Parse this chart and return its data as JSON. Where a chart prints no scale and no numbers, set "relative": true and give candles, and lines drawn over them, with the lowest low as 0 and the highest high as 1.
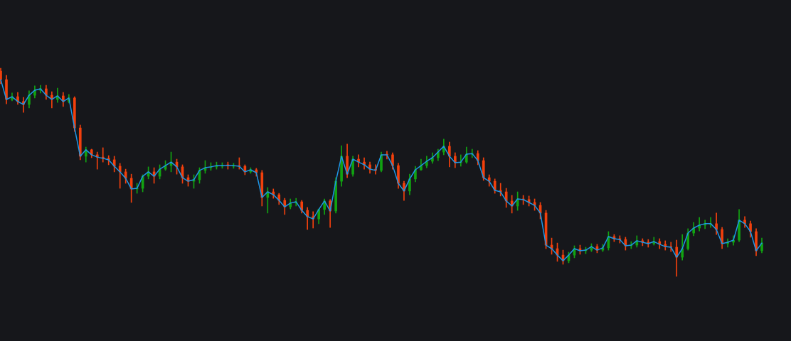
{
  "chart_data": {
    "type": "candlestick",
    "relative": true,
    "categories": [
      null,
      null,
      null,
      null,
      null,
      null,
      null,
      null,
      null,
      null,
      null,
      null,
      null,
      null,
      null,
      null,
      null,
      null,
      null,
      null,
      null,
      null,
      null,
      null,
      null,
      null,
      null,
      null,
      null,
      null,
      null,
      null,
      null,
      null,
      null,
      null,
      null,
      null,
      null,
      null,
      null,
      null,
      null,
      null,
      null,
      null,
      null,
      null,
      null,
      null,
      null,
      null,
      null,
      null,
      null,
      null,
      null,
      null,
      null,
      null,
      null,
      null,
      null,
      null,
      null,
      null,
      null,
      null,
      null,
      null,
      null,
      null,
      null,
      null,
      null,
      null,
      null,
      null,
      null,
      null,
      null,
      null,
      null,
      null,
      null,
      null,
      null,
      null,
      null,
      null,
      null,
      null,
      null,
      null,
      null,
      null,
      null,
      null,
      null,
      null,
      null,
      null,
      null,
      null,
      null,
      null,
      null,
      null,
      null,
      null,
      null,
      null,
      null,
      null,
      null,
      null,
      null,
      null,
      null,
      null,
      null,
      null,
      null,
      null,
      null,
      null,
      null,
      null,
      null,
      null,
      null,
      null,
      null,
      null,
      null
    ],
    "series": [
      {
        "type": "line",
        "color": "#1e96e6",
        "values": [
          0.945,
          0.85,
          0.863,
          0.84,
          0.826,
          0.87,
          0.894,
          0.901,
          0.87,
          0.85,
          0.867,
          0.84,
          0.857,
          0.713,
          0.577,
          0.608,
          0.584,
          0.573,
          0.567,
          0.56,
          0.529,
          0.502,
          0.471,
          0.42,
          0.423,
          0.481,
          0.502,
          0.481,
          0.515,
          0.532,
          0.549,
          0.526,
          0.474,
          0.457,
          0.464,
          0.509,
          0.522,
          0.526,
          0.532,
          0.532,
          0.532,
          0.532,
          0.529,
          0.502,
          0.512,
          0.498,
          0.379,
          0.406,
          0.392,
          0.365,
          0.334,
          0.352,
          0.358,
          0.317,
          0.287,
          0.276,
          0.321,
          0.362,
          0.314,
          0.457,
          0.577,
          0.491,
          0.563,
          0.549,
          0.536,
          0.515,
          0.509,
          0.584,
          0.584,
          0.532,
          0.447,
          0.41,
          0.468,
          0.512,
          0.532,
          0.553,
          0.57,
          0.597,
          0.625,
          0.577,
          0.546,
          0.549,
          0.587,
          0.59,
          0.556,
          0.474,
          0.457,
          0.413,
          0.406,
          0.362,
          0.338,
          0.372,
          0.369,
          0.355,
          0.341,
          0.304,
          0.15,
          0.133,
          0.102,
          0.075,
          0.102,
          0.133,
          0.123,
          0.126,
          0.143,
          0.126,
          0.137,
          0.191,
          0.181,
          0.177,
          0.147,
          0.15,
          0.171,
          0.164,
          0.157,
          0.167,
          0.154,
          0.143,
          0.14,
          0.092,
          0.133,
          0.208,
          0.232,
          0.246,
          0.253,
          0.253,
          0.225,
          0.157,
          0.164,
          0.174,
          0.27,
          0.253,
          0.215,
          0.123,
          0.16
        ]
      },
      {
        "ohlc": [
          [
            0.986,
            1,
            0.925,
            0.945
          ],
          [
            0.945,
            0.966,
            0.829,
            0.85
          ],
          [
            0.85,
            0.881,
            0.843,
            0.863
          ],
          [
            0.863,
            0.884,
            0.826,
            0.84
          ],
          [
            0.84,
            0.86,
            0.788,
            0.826
          ],
          [
            0.826,
            0.891,
            0.809,
            0.87
          ],
          [
            0.87,
            0.915,
            0.857,
            0.894
          ],
          [
            0.894,
            0.918,
            0.881,
            0.901
          ],
          [
            0.901,
            0.918,
            0.85,
            0.87
          ],
          [
            0.87,
            0.887,
            0.809,
            0.85
          ],
          [
            0.85,
            0.904,
            0.836,
            0.867
          ],
          [
            0.867,
            0.884,
            0.816,
            0.84
          ],
          [
            0.84,
            0.874,
            0.833,
            0.857
          ],
          [
            0.857,
            0.863,
            0.696,
            0.713
          ],
          [
            0.713,
            0.727,
            0.56,
            0.577
          ],
          [
            0.577,
            0.621,
            0.549,
            0.608
          ],
          [
            0.608,
            0.611,
            0.57,
            0.584
          ],
          [
            0.584,
            0.597,
            0.515,
            0.573
          ],
          [
            0.573,
            0.618,
            0.549,
            0.567
          ],
          [
            0.567,
            0.58,
            0.536,
            0.56
          ],
          [
            0.56,
            0.577,
            0.502,
            0.529
          ],
          [
            0.529,
            0.543,
            0.423,
            0.502
          ],
          [
            0.502,
            0.515,
            0.447,
            0.471
          ],
          [
            0.471,
            0.491,
            0.355,
            0.42
          ],
          [
            0.42,
            0.447,
            0.399,
            0.423
          ],
          [
            0.423,
            0.488,
            0.406,
            0.481
          ],
          [
            0.481,
            0.526,
            0.468,
            0.502
          ],
          [
            0.502,
            0.522,
            0.447,
            0.481
          ],
          [
            0.481,
            0.536,
            0.468,
            0.515
          ],
          [
            0.515,
            0.556,
            0.509,
            0.532
          ],
          [
            0.532,
            0.597,
            0.502,
            0.549
          ],
          [
            0.549,
            0.563,
            0.491,
            0.526
          ],
          [
            0.526,
            0.536,
            0.447,
            0.474
          ],
          [
            0.474,
            0.488,
            0.433,
            0.457
          ],
          [
            0.457,
            0.488,
            0.423,
            0.464
          ],
          [
            0.464,
            0.522,
            0.447,
            0.509
          ],
          [
            0.509,
            0.556,
            0.495,
            0.522
          ],
          [
            0.522,
            0.546,
            0.509,
            0.526
          ],
          [
            0.526,
            0.549,
            0.515,
            0.532
          ],
          [
            0.529,
            0.546,
            0.519,
            0.532
          ],
          [
            0.536,
            0.549,
            0.515,
            0.532
          ],
          [
            0.529,
            0.543,
            0.519,
            0.532
          ],
          [
            0.532,
            0.57,
            0.515,
            0.529
          ],
          [
            0.529,
            0.536,
            0.488,
            0.502
          ],
          [
            0.502,
            0.522,
            0.495,
            0.512
          ],
          [
            0.512,
            0.519,
            0.481,
            0.498
          ],
          [
            0.498,
            0.509,
            0.338,
            0.379
          ],
          [
            0.379,
            0.427,
            0.304,
            0.406
          ],
          [
            0.406,
            0.42,
            0.375,
            0.392
          ],
          [
            0.392,
            0.399,
            0.345,
            0.365
          ],
          [
            0.365,
            0.375,
            0.297,
            0.334
          ],
          [
            0.334,
            0.372,
            0.324,
            0.352
          ],
          [
            0.352,
            0.375,
            0.338,
            0.358
          ],
          [
            0.358,
            0.365,
            0.304,
            0.317
          ],
          [
            0.317,
            0.331,
            0.225,
            0.287
          ],
          [
            0.287,
            0.311,
            0.232,
            0.276
          ],
          [
            0.276,
            0.324,
            0.253,
            0.321
          ],
          [
            0.321,
            0.372,
            0.297,
            0.362
          ],
          [
            0.362,
            0.369,
            0.235,
            0.314
          ],
          [
            0.314,
            0.474,
            0.304,
            0.457
          ],
          [
            0.457,
            0.628,
            0.433,
            0.577
          ],
          [
            0.577,
            0.635,
            0.474,
            0.491
          ],
          [
            0.491,
            0.577,
            0.481,
            0.563
          ],
          [
            0.563,
            0.584,
            0.526,
            0.549
          ],
          [
            0.549,
            0.57,
            0.515,
            0.536
          ],
          [
            0.536,
            0.549,
            0.495,
            0.515
          ],
          [
            0.515,
            0.536,
            0.491,
            0.509
          ],
          [
            0.509,
            0.597,
            0.502,
            0.584
          ],
          [
            0.587,
            0.601,
            0.563,
            0.584
          ],
          [
            0.584,
            0.594,
            0.515,
            0.532
          ],
          [
            0.532,
            0.543,
            0.423,
            0.447
          ],
          [
            0.447,
            0.457,
            0.365,
            0.41
          ],
          [
            0.41,
            0.491,
            0.392,
            0.468
          ],
          [
            0.468,
            0.529,
            0.454,
            0.512
          ],
          [
            0.512,
            0.563,
            0.509,
            0.532
          ],
          [
            0.532,
            0.577,
            0.522,
            0.553
          ],
          [
            0.553,
            0.594,
            0.543,
            0.57
          ],
          [
            0.57,
            0.611,
            0.556,
            0.597
          ],
          [
            0.597,
            0.659,
            0.584,
            0.625
          ],
          [
            0.625,
            0.645,
            0.526,
            0.577
          ],
          [
            0.577,
            0.594,
            0.522,
            0.546
          ],
          [
            0.546,
            0.584,
            0.529,
            0.549
          ],
          [
            0.549,
            0.621,
            0.543,
            0.587
          ],
          [
            0.587,
            0.611,
            0.57,
            0.59
          ],
          [
            0.59,
            0.604,
            0.536,
            0.556
          ],
          [
            0.556,
            0.57,
            0.461,
            0.474
          ],
          [
            0.474,
            0.488,
            0.433,
            0.457
          ],
          [
            0.457,
            0.468,
            0.399,
            0.413
          ],
          [
            0.413,
            0.447,
            0.386,
            0.406
          ],
          [
            0.406,
            0.423,
            0.331,
            0.362
          ],
          [
            0.362,
            0.389,
            0.304,
            0.338
          ],
          [
            0.338,
            0.406,
            0.317,
            0.372
          ],
          [
            0.372,
            0.389,
            0.345,
            0.369
          ],
          [
            0.369,
            0.386,
            0.338,
            0.355
          ],
          [
            0.355,
            0.372,
            0.317,
            0.341
          ],
          [
            0.341,
            0.355,
            0.276,
            0.304
          ],
          [
            0.304,
            0.317,
            0.133,
            0.15
          ],
          [
            0.15,
            0.184,
            0.106,
            0.133
          ],
          [
            0.133,
            0.16,
            0.072,
            0.102
          ],
          [
            0.102,
            0.126,
            0.058,
            0.075
          ],
          [
            0.075,
            0.116,
            0.065,
            0.102
          ],
          [
            0.102,
            0.147,
            0.089,
            0.133
          ],
          [
            0.133,
            0.15,
            0.106,
            0.123
          ],
          [
            0.123,
            0.14,
            0.109,
            0.126
          ],
          [
            0.126,
            0.157,
            0.119,
            0.143
          ],
          [
            0.143,
            0.154,
            0.113,
            0.126
          ],
          [
            0.126,
            0.154,
            0.119,
            0.137
          ],
          [
            0.137,
            0.215,
            0.126,
            0.191
          ],
          [
            0.191,
            0.201,
            0.167,
            0.181
          ],
          [
            0.181,
            0.195,
            0.16,
            0.177
          ],
          [
            0.177,
            0.188,
            0.126,
            0.147
          ],
          [
            0.147,
            0.167,
            0.133,
            0.15
          ],
          [
            0.15,
            0.195,
            0.14,
            0.171
          ],
          [
            0.171,
            0.181,
            0.147,
            0.164
          ],
          [
            0.164,
            0.177,
            0.14,
            0.157
          ],
          [
            0.157,
            0.188,
            0.15,
            0.167
          ],
          [
            0.167,
            0.181,
            0.133,
            0.154
          ],
          [
            0.154,
            0.171,
            0.126,
            0.143
          ],
          [
            0.143,
            0.164,
            0.119,
            0.14
          ],
          [
            0.14,
            0.174,
            0,
            0.092
          ],
          [
            0.092,
            0.201,
            0.078,
            0.133
          ],
          [
            0.133,
            0.229,
            0.126,
            0.208
          ],
          [
            0.208,
            0.259,
            0.195,
            0.232
          ],
          [
            0.232,
            0.283,
            0.218,
            0.246
          ],
          [
            0.246,
            0.27,
            0.229,
            0.253
          ],
          [
            0.249,
            0.283,
            0.235,
            0.253
          ],
          [
            0.253,
            0.304,
            0.201,
            0.225
          ],
          [
            0.225,
            0.235,
            0.133,
            0.157
          ],
          [
            0.157,
            0.181,
            0.14,
            0.164
          ],
          [
            0.164,
            0.195,
            0.15,
            0.174
          ],
          [
            0.174,
            0.321,
            0.167,
            0.27
          ],
          [
            0.27,
            0.287,
            0.235,
            0.253
          ],
          [
            0.253,
            0.266,
            0.188,
            0.215
          ],
          [
            0.215,
            0.229,
            0.099,
            0.123
          ],
          [
            0.123,
            0.184,
            0.113,
            0.16
          ]
        ],
        "colors": [
          "#f2400d",
          "#f2400d",
          "#12a312",
          "#f2400d",
          "#f2400d",
          "#12a312",
          "#12a312",
          "#12a312",
          "#f2400d",
          "#f2400d",
          "#12a312",
          "#f2400d",
          "#12a312",
          "#f2400d",
          "#f2400d",
          "#12a312",
          "#f2400d",
          "#f2400d",
          "#f2400d",
          "#f2400d",
          "#f2400d",
          "#f2400d",
          "#f2400d",
          "#f2400d",
          "#12a312",
          "#12a312",
          "#12a312",
          "#f2400d",
          "#12a312",
          "#12a312",
          "#12a312",
          "#f2400d",
          "#f2400d",
          "#f2400d",
          "#12a312",
          "#12a312",
          "#12a312",
          "#12a312",
          "#12a312",
          "#12a312",
          "#f2400d",
          "#12a312",
          "#f2400d",
          "#f2400d",
          "#12a312",
          "#f2400d",
          "#f2400d",
          "#12a312",
          "#f2400d",
          "#f2400d",
          "#f2400d",
          "#12a312",
          "#12a312",
          "#f2400d",
          "#f2400d",
          "#f2400d",
          "#12a312",
          "#12a312",
          "#f2400d",
          "#12a312",
          "#12a312",
          "#f2400d",
          "#12a312",
          "#f2400d",
          "#f2400d",
          "#f2400d",
          "#f2400d",
          "#12a312",
          "#f2400d",
          "#f2400d",
          "#f2400d",
          "#f2400d",
          "#12a312",
          "#12a312",
          "#12a312",
          "#12a312",
          "#12a312",
          "#12a312",
          "#12a312",
          "#f2400d",
          "#f2400d",
          "#12a312",
          "#12a312",
          "#12a312",
          "#f2400d",
          "#f2400d",
          "#f2400d",
          "#f2400d",
          "#f2400d",
          "#f2400d",
          "#f2400d",
          "#12a312",
          "#f2400d",
          "#f2400d",
          "#f2400d",
          "#f2400d",
          "#f2400d",
          "#f2400d",
          "#f2400d",
          "#f2400d",
          "#12a312",
          "#12a312",
          "#f2400d",
          "#12a312",
          "#12a312",
          "#f2400d",
          "#12a312",
          "#12a312",
          "#f2400d",
          "#f2400d",
          "#f2400d",
          "#12a312",
          "#12a312",
          "#f2400d",
          "#f2400d",
          "#12a312",
          "#f2400d",
          "#f2400d",
          "#f2400d",
          "#f2400d",
          "#12a312",
          "#12a312",
          "#12a312",
          "#12a312",
          "#12a312",
          "#12a312",
          "#f2400d",
          "#f2400d",
          "#12a312",
          "#12a312",
          "#12a312",
          "#f2400d",
          "#f2400d",
          "#f2400d",
          "#12a312"
        ]
      }
    ]
  }
}
